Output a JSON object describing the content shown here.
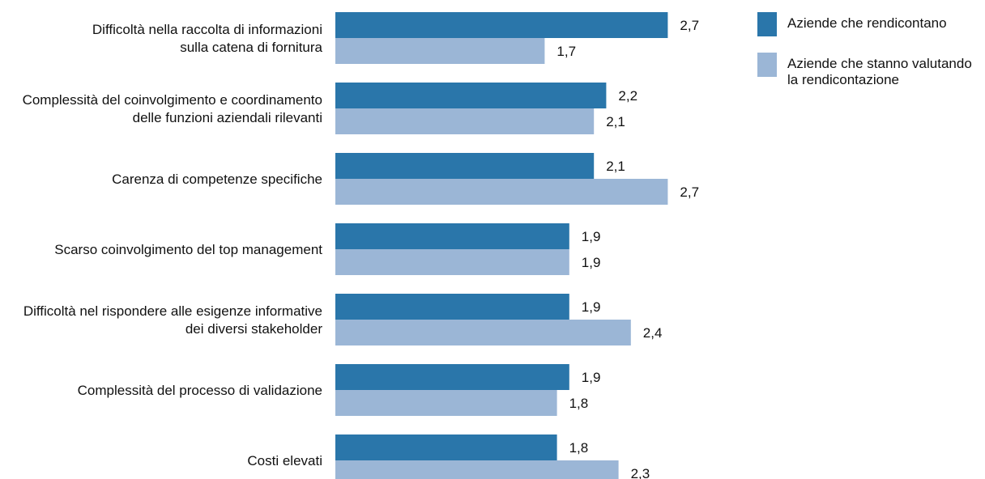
{
  "chart_data": {
    "type": "bar",
    "orientation": "horizontal",
    "title": "",
    "xlabel": "",
    "ylabel": "",
    "xlim": [
      0,
      3
    ],
    "grid": false,
    "legend_position": "top-right",
    "categories": [
      [
        "Difficoltà nella raccolta di informazioni",
        "sulla catena di fornitura"
      ],
      [
        "Complessità del coinvolgimento e coordinamento",
        "delle funzioni aziendali rilevanti"
      ],
      [
        "Carenza di competenze specifiche"
      ],
      [
        "Scarso coinvolgimento del top management"
      ],
      [
        "Difficoltà nel rispondere alle esigenze informative",
        "dei diversi stakeholder"
      ],
      [
        "Complessità del processo di validazione"
      ],
      [
        "Costi elevati"
      ]
    ],
    "series": [
      {
        "name": [
          "Aziende che rendicontano"
        ],
        "color": "#2a76aa",
        "values": [
          2.7,
          2.2,
          2.1,
          1.9,
          1.9,
          1.9,
          1.8
        ],
        "labels": [
          "2,7",
          "2,2",
          "2,1",
          "1,9",
          "1,9",
          "1,9",
          "1,8"
        ]
      },
      {
        "name": [
          "Aziende che stanno valutando",
          "la rendicontazione"
        ],
        "color": "#9bb6d6",
        "values": [
          1.7,
          2.1,
          2.7,
          1.9,
          2.4,
          1.8,
          2.3
        ],
        "labels": [
          "1,7",
          "2,1",
          "2,7",
          "1,9",
          "2,4",
          "1,8",
          "2,3"
        ]
      }
    ]
  }
}
